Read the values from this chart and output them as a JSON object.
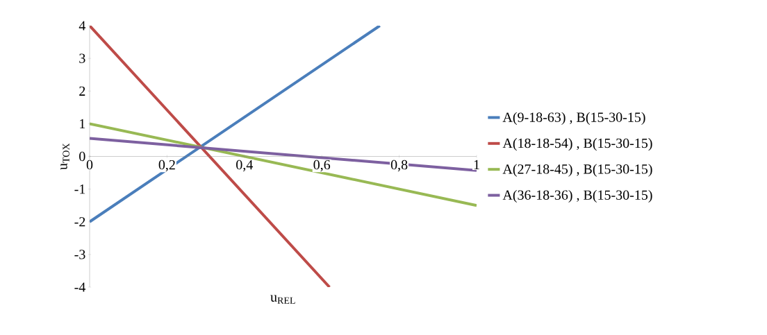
{
  "chart_data": {
    "type": "line",
    "xlabel": "u$_{REL}$",
    "ylabel": "u$_{TOX}$",
    "xlim": [
      0,
      1
    ],
    "ylim": [
      -4,
      4
    ],
    "xticks": [
      {
        "value": 0,
        "label": "0"
      },
      {
        "value": 0.2,
        "label": "0,2"
      },
      {
        "value": 0.4,
        "label": "0,4"
      },
      {
        "value": 0.6,
        "label": "0,6"
      },
      {
        "value": 0.8,
        "label": "0,8"
      },
      {
        "value": 1,
        "label": "1"
      }
    ],
    "yticks": [
      -4,
      -3,
      -2,
      -1,
      0,
      1,
      2,
      3,
      4
    ],
    "legend": "right",
    "grid": false,
    "marker": "none",
    "line_style": "solid",
    "series": [
      {
        "name": "A(9-18-63) , B(15-30-15)",
        "color": "#4a7ebb",
        "x": [
          0,
          0.75
        ],
        "values": [
          -2,
          4
        ]
      },
      {
        "name": "A(18-18-54) , B(15-30-15)",
        "color": "#be4b48",
        "x": [
          0,
          0.62
        ],
        "values": [
          4,
          -4
        ]
      },
      {
        "name": "A(27-18-45) , B(15-30-15)",
        "color": "#98b954",
        "x": [
          0,
          1
        ],
        "values": [
          1,
          -1.5
        ]
      },
      {
        "name": "A(36-18-36) , B(15-30-15)",
        "color": "#7d60a0",
        "x": [
          0,
          1
        ],
        "values": [
          0.55,
          -0.43
        ]
      }
    ]
  }
}
